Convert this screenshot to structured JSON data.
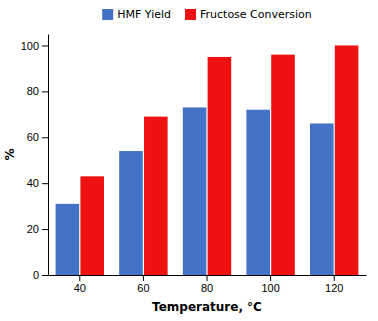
{
  "chart_data": {
    "type": "bar",
    "categories": [
      "40",
      "60",
      "80",
      "100",
      "120"
    ],
    "series": [
      {
        "name": "HMF Yield",
        "color": "#4472C4",
        "values": [
          31,
          54,
          73,
          72,
          66
        ]
      },
      {
        "name": "Fructose Conversion",
        "color": "#EE1111",
        "values": [
          43,
          69,
          95,
          96,
          100
        ]
      }
    ],
    "xlabel": "Temperature, °C",
    "ylabel": "%",
    "ylim": [
      0,
      105
    ],
    "yticks": [
      0,
      20,
      40,
      60,
      80,
      100
    ],
    "grid": false,
    "legend": "top"
  }
}
